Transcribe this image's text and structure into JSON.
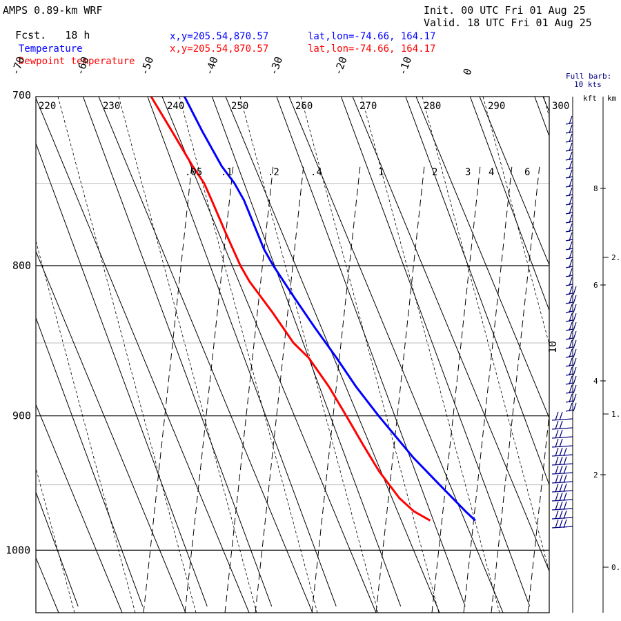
{
  "header": {
    "model": "AMPS 0.89-km WRF",
    "fcst_label": "Fcst.",
    "fcst_value": "18 h",
    "init": "Init. 00 UTC Fri 01 Aug 25",
    "valid": "Valid. 18 UTC Fri 01 Aug 25"
  },
  "legend": [
    {
      "label": "Temperature",
      "xy": "x,y=205.54,870.57",
      "latlon": "lat,lon=-74.66, 164.17",
      "color": "#0000ff"
    },
    {
      "label": "Dewpoint temperature",
      "xy": "x,y=205.54,870.57",
      "latlon": "lat,lon=-74.66, 164.17",
      "color": "#ff0000"
    }
  ],
  "wind": {
    "barb_title": "Full barb:",
    "barb_value": "10 kts",
    "kft_label": "kft",
    "km_label": "km"
  },
  "chart_data": {
    "type": "line",
    "diagram": "skew-T log-p",
    "y_axis": {
      "quantity": "pressure (hPa)",
      "scale": "log",
      "range": [
        1045,
        700
      ],
      "ticks": [
        "700",
        "800",
        "900",
        "1000"
      ]
    },
    "x_axis": {
      "quantity": "temperature (°C)",
      "skewed": true,
      "ticks": [
        "-70",
        "-60",
        "-50",
        "-40",
        "-30",
        "-20",
        "-10",
        "0"
      ]
    },
    "potential_temperature_labels": [
      "220",
      "230",
      "240",
      "250",
      "260",
      "270",
      "280",
      "290",
      "300"
    ],
    "mixing_ratio_labels": [
      ".05",
      ".1",
      ".2",
      ".4",
      "1",
      "2",
      "3",
      "4",
      "6"
    ],
    "extra_labels": [
      "10"
    ],
    "height_axis": {
      "kft": [
        "2",
        "4",
        "6",
        "8"
      ],
      "km": [
        "0.",
        "1.",
        "2."
      ]
    },
    "series": [
      {
        "name": "Temperature",
        "color": "#0000ff",
        "points": [
          [
            977,
            -23.5
          ],
          [
            970,
            -24.5
          ],
          [
            950,
            -27
          ],
          [
            930,
            -29.5
          ],
          [
            900,
            -32.5
          ],
          [
            880,
            -34.3
          ],
          [
            860,
            -35.7
          ],
          [
            840,
            -37.3
          ],
          [
            820,
            -38.8
          ],
          [
            800,
            -40.2
          ],
          [
            790,
            -40.7
          ],
          [
            780,
            -40.8
          ],
          [
            760,
            -41
          ],
          [
            750,
            -41.5
          ],
          [
            740,
            -42.5
          ],
          [
            720,
            -43.5
          ],
          [
            700,
            -44.3
          ]
        ]
      },
      {
        "name": "Dewpoint temperature",
        "color": "#ff0000",
        "points": [
          [
            977,
            -30.5
          ],
          [
            970,
            -32.5
          ],
          [
            960,
            -34
          ],
          [
            940,
            -35.6
          ],
          [
            920,
            -36.6
          ],
          [
            900,
            -37.5
          ],
          [
            880,
            -38.5
          ],
          [
            860,
            -40
          ],
          [
            850,
            -41.5
          ],
          [
            830,
            -43
          ],
          [
            810,
            -44.8
          ],
          [
            800,
            -45.3
          ],
          [
            780,
            -45.7
          ],
          [
            760,
            -46
          ],
          [
            750,
            -46.2
          ],
          [
            740,
            -47
          ],
          [
            720,
            -48.2
          ],
          [
            700,
            -49.5
          ]
        ]
      }
    ],
    "wind_barbs": "present along right margin from about 975 hPa to 700 hPa (westerly, ~10-30 kts)",
    "grid": true
  }
}
